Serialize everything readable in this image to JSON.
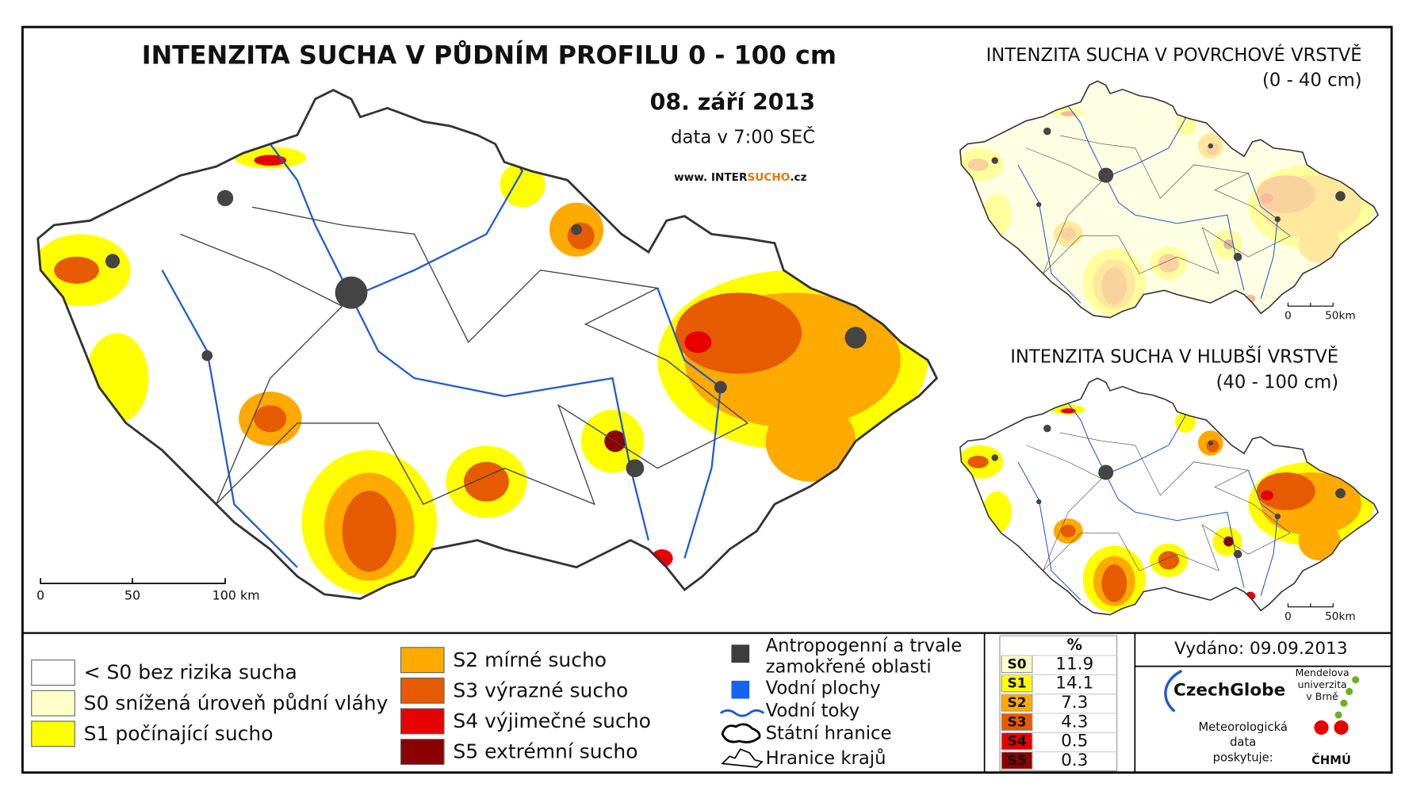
{
  "main_map": {
    "title": "INTENZITA SUCHA V PŮDNÍM PROFILU 0 - 100 cm",
    "date": "08. září 2013",
    "data_time": "data v 7:00 SEČ",
    "website": [
      "www. INTER",
      "SUCHO",
      ".cz"
    ],
    "scale_labels": [
      "0",
      "50",
      "100 km"
    ]
  },
  "insets": [
    {
      "title": "INTENZITA SUCHA V POVRCHOVÉ VRSTVĚ",
      "subtitle": "(0 - 40 cm)",
      "scale_labels": [
        "0",
        "50km"
      ]
    },
    {
      "title": "INTENZITA SUCHA V HLUBŠÍ VRSTVĚ",
      "subtitle": "(40 - 100 cm)",
      "scale_labels": [
        "0",
        "50km"
      ]
    }
  ],
  "legend": {
    "drought_classes": [
      {
        "label": "< S0 bez rizika sucha",
        "color": "#ffffff"
      },
      {
        "label": "S0 snížená úroveň půdní vláhy",
        "color": "#ffffc8"
      },
      {
        "label": "S1 počínající sucho",
        "color": "#ffff00"
      },
      {
        "label": "S2 mírné sucho",
        "color": "#ffaa00"
      },
      {
        "label": "S3 výrazné sucho",
        "color": "#e65a00"
      },
      {
        "label": "S4 výjimečné sucho",
        "color": "#e60000"
      },
      {
        "label": "S5 extrémní sucho",
        "color": "#8b0000"
      }
    ],
    "symbols": [
      [
        "Antropogenní a trvale",
        "zamokřené oblasti"
      ],
      [
        "Vodní plochy"
      ],
      [
        "Vodní toky"
      ],
      [
        "Státní hranice"
      ],
      [
        "Hranice krajů"
      ]
    ]
  },
  "table": {
    "header": "%",
    "rows": [
      {
        "class": "S0",
        "color": "#ffffc8",
        "percent": 11.9
      },
      {
        "class": "S1",
        "color": "#ffff00",
        "percent": 14.1
      },
      {
        "class": "S2",
        "color": "#ffaa00",
        "percent": 7.3
      },
      {
        "class": "S3",
        "color": "#e65a00",
        "percent": 4.3
      },
      {
        "class": "S4",
        "color": "#e60000",
        "percent": 0.5
      },
      {
        "class": "S5",
        "color": "#8b0000",
        "percent": 0.3
      }
    ]
  },
  "issued": "Vydáno: 09.09.2013",
  "logos": {
    "czechglobe": "CzechGlobe",
    "mendel": [
      "Mendelova",
      "univerzita",
      "v Brně"
    ],
    "data_provider": [
      "Meteorologická",
      "data",
      "poskytuje:"
    ],
    "chmu": "ČHMÚ"
  }
}
